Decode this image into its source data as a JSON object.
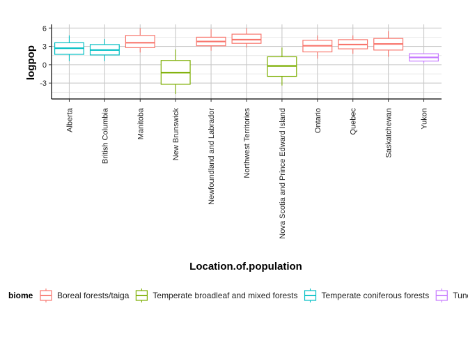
{
  "chart_data": {
    "type": "boxplot",
    "title": "",
    "xlabel": "Location.of.population",
    "ylabel": "logpop",
    "ylim": [
      -5.6,
      6.6
    ],
    "yticks": [
      -3,
      0,
      3,
      6
    ],
    "grid": true,
    "legend": {
      "title": "biome",
      "placement": "bottom",
      "entries": [
        {
          "label": "Boreal forests/taiga",
          "color": "#F8766D"
        },
        {
          "label": "Temperate broadleaf and mixed forests",
          "color": "#7CAE00"
        },
        {
          "label": "Temperate coniferous forests",
          "color": "#00BFC4"
        },
        {
          "label": "Tundra",
          "color": "#C77CFF"
        }
      ]
    },
    "categories": [
      "Alberta",
      "British Columbia",
      "Manitoba",
      "New Brunswick",
      "Newfoundland and Labrador",
      "Northwest Territories",
      "Nova Scotia and Prince Edward Island",
      "Ontario",
      "Quebec",
      "Saskatchewan",
      "Yukon"
    ],
    "boxes": [
      {
        "category": "Alberta",
        "biome": "Temperate coniferous forests",
        "color": "#00BFC4",
        "min": 0.6,
        "q1": 1.7,
        "median": 2.7,
        "q3": 3.6,
        "max": 4.8
      },
      {
        "category": "British Columbia",
        "biome": "Temperate coniferous forests",
        "color": "#00BFC4",
        "min": 0.6,
        "q1": 1.6,
        "median": 2.4,
        "q3": 3.3,
        "max": 4.2
      },
      {
        "category": "Manitoba",
        "biome": "Boreal forests/taiga",
        "color": "#F8766D",
        "min": 2.0,
        "q1": 2.8,
        "median": 3.6,
        "q3": 4.8,
        "max": 6.0
      },
      {
        "category": "New Brunswick",
        "biome": "Temperate broadleaf and mixed forests",
        "color": "#7CAE00",
        "min": -4.8,
        "q1": -3.2,
        "median": -1.3,
        "q3": 0.7,
        "max": 2.5
      },
      {
        "category": "Newfoundland and Labrador",
        "biome": "Boreal forests/taiga",
        "color": "#F8766D",
        "min": 2.3,
        "q1": 3.1,
        "median": 3.8,
        "q3": 4.5,
        "max": 5.8
      },
      {
        "category": "Northwest Territories",
        "biome": "Boreal forests/taiga",
        "color": "#F8766D",
        "min": 2.8,
        "q1": 3.5,
        "median": 4.1,
        "q3": 5.0,
        "max": 6.0
      },
      {
        "category": "Nova Scotia and Prince Edward Island",
        "biome": "Temperate broadleaf and mixed forests",
        "color": "#7CAE00",
        "min": -3.4,
        "q1": -1.9,
        "median": -0.2,
        "q3": 1.3,
        "max": 2.8
      },
      {
        "category": "Ontario",
        "biome": "Boreal forests/taiga",
        "color": "#F8766D",
        "min": 1.0,
        "q1": 2.1,
        "median": 3.1,
        "q3": 4.0,
        "max": 4.8
      },
      {
        "category": "Quebec",
        "biome": "Boreal forests/taiga",
        "color": "#F8766D",
        "min": 1.8,
        "q1": 2.6,
        "median": 3.3,
        "q3": 4.1,
        "max": 4.8
      },
      {
        "category": "Saskatchewan",
        "biome": "Boreal forests/taiga",
        "color": "#F8766D",
        "min": 1.3,
        "q1": 2.4,
        "median": 3.4,
        "q3": 4.3,
        "max": 5.5
      },
      {
        "category": "Yukon",
        "biome": "Tundra",
        "color": "#C77CFF",
        "min": 0.3,
        "q1": 0.6,
        "median": 1.2,
        "q3": 1.8,
        "max": 1.8
      }
    ]
  }
}
